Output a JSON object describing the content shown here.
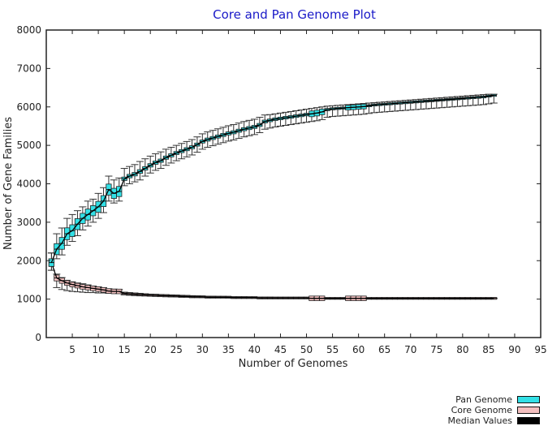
{
  "chart_data": {
    "type": "box",
    "title": "Core and Pan Genome Plot",
    "xlabel": "Number of Genomes",
    "ylabel": "Number of Gene Families",
    "xlim": [
      0,
      95
    ],
    "ylim": [
      0,
      8000
    ],
    "xticks": [
      5,
      10,
      15,
      20,
      25,
      30,
      35,
      40,
      45,
      50,
      55,
      60,
      65,
      70,
      75,
      80,
      85,
      90,
      95
    ],
    "yticks": [
      0,
      1000,
      2000,
      3000,
      4000,
      5000,
      6000,
      7000,
      8000
    ],
    "grid": false,
    "legend_position": "bottom-right",
    "x": [
      1,
      2,
      3,
      4,
      5,
      6,
      7,
      8,
      9,
      10,
      11,
      12,
      13,
      14,
      15,
      16,
      17,
      18,
      19,
      20,
      21,
      22,
      23,
      24,
      25,
      26,
      27,
      28,
      29,
      30,
      31,
      32,
      33,
      34,
      35,
      36,
      37,
      38,
      39,
      40,
      41,
      42,
      43,
      44,
      45,
      46,
      47,
      48,
      49,
      50,
      51,
      52,
      53,
      54,
      55,
      56,
      57,
      58,
      59,
      60,
      61,
      62,
      63,
      64,
      65,
      66,
      67,
      68,
      69,
      70,
      71,
      72,
      73,
      74,
      75,
      76,
      77,
      78,
      79,
      80,
      81,
      82,
      83,
      84,
      85,
      86
    ],
    "series": [
      {
        "name": "Pan Genome",
        "color": "#33e0e6",
        "median": [
          1950,
          2300,
          2450,
          2700,
          2780,
          2950,
          3100,
          3200,
          3300,
          3400,
          3550,
          3850,
          3750,
          3800,
          4130,
          4200,
          4250,
          4320,
          4400,
          4480,
          4550,
          4600,
          4680,
          4740,
          4800,
          4850,
          4900,
          4950,
          5020,
          5100,
          5150,
          5190,
          5230,
          5270,
          5310,
          5340,
          5380,
          5420,
          5450,
          5480,
          5530,
          5620,
          5650,
          5680,
          5700,
          5720,
          5740,
          5760,
          5780,
          5800,
          5820,
          5840,
          5870,
          5930,
          5950,
          5960,
          5970,
          5980,
          5990,
          6000,
          6010,
          6030,
          6050,
          6060,
          6070,
          6080,
          6090,
          6100,
          6110,
          6120,
          6130,
          6140,
          6150,
          6160,
          6170,
          6180,
          6190,
          6200,
          6210,
          6220,
          6230,
          6240,
          6250,
          6260,
          6280,
          6300
        ],
        "whisker_low": [
          1750,
          2050,
          2150,
          2400,
          2500,
          2650,
          2800,
          2900,
          3000,
          3100,
          3250,
          3550,
          3500,
          3550,
          3950,
          4000,
          4050,
          4100,
          4200,
          4280,
          4350,
          4400,
          4480,
          4540,
          4600,
          4650,
          4700,
          4750,
          4820,
          4900,
          4950,
          4990,
          5030,
          5070,
          5110,
          5140,
          5180,
          5220,
          5250,
          5280,
          5330,
          5420,
          5450,
          5480,
          5500,
          5520,
          5540,
          5560,
          5580,
          5600,
          5620,
          5640,
          5670,
          5730,
          5750,
          5760,
          5770,
          5780,
          5790,
          5800,
          5810,
          5830,
          5850,
          5860,
          5870,
          5880,
          5890,
          5900,
          5910,
          5920,
          5930,
          5940,
          5950,
          5960,
          5970,
          5980,
          5990,
          6000,
          6010,
          6020,
          6030,
          6040,
          6050,
          6060,
          6080,
          6100
        ],
        "whisker_high": [
          2200,
          2700,
          2850,
          3100,
          3200,
          3300,
          3400,
          3550,
          3600,
          3750,
          3900,
          4200,
          4100,
          4150,
          4400,
          4450,
          4500,
          4580,
          4650,
          4720,
          4780,
          4830,
          4900,
          4950,
          5000,
          5050,
          5100,
          5150,
          5220,
          5300,
          5350,
          5390,
          5430,
          5470,
          5510,
          5540,
          5580,
          5620,
          5650,
          5680,
          5730,
          5790,
          5800,
          5820,
          5840,
          5860,
          5880,
          5900,
          5920,
          5940,
          5960,
          5980,
          6000,
          6020,
          6030,
          6040,
          6050,
          6060,
          6070,
          6080,
          6090,
          6100,
          6110,
          6120,
          6130,
          6140,
          6150,
          6160,
          6170,
          6180,
          6190,
          6200,
          6210,
          6220,
          6230,
          6240,
          6250,
          6260,
          6270,
          6280,
          6290,
          6300,
          6310,
          6320,
          6330,
          6330
        ]
      },
      {
        "name": "Core Genome",
        "color": "#f4c0c0",
        "median": [
          1950,
          1550,
          1480,
          1420,
          1380,
          1350,
          1320,
          1300,
          1280,
          1260,
          1240,
          1210,
          1200,
          1200,
          1150,
          1140,
          1130,
          1120,
          1110,
          1100,
          1100,
          1090,
          1090,
          1080,
          1080,
          1070,
          1070,
          1060,
          1060,
          1060,
          1050,
          1050,
          1050,
          1050,
          1050,
          1040,
          1040,
          1040,
          1040,
          1040,
          1030,
          1030,
          1030,
          1030,
          1030,
          1030,
          1030,
          1030,
          1030,
          1030,
          1020,
          1020,
          1020,
          1020,
          1020,
          1020,
          1020,
          1020,
          1020,
          1020,
          1020,
          1020,
          1020,
          1020,
          1020,
          1020,
          1020,
          1020,
          1020,
          1020,
          1020,
          1020,
          1020,
          1020,
          1020,
          1020,
          1020,
          1020,
          1020,
          1020,
          1020,
          1020,
          1020,
          1020,
          1020,
          1020
        ],
        "whisker_low": [
          1750,
          1300,
          1250,
          1220,
          1200,
          1190,
          1180,
          1170,
          1170,
          1160,
          1160,
          1150,
          1150,
          1150,
          1110,
          1100,
          1090,
          1085,
          1080,
          1075,
          1070,
          1065,
          1060,
          1060,
          1055,
          1050,
          1050,
          1045,
          1045,
          1040,
          1040,
          1035,
          1035,
          1035,
          1030,
          1030,
          1030,
          1025,
          1025,
          1025,
          1025,
          1020,
          1020,
          1020,
          1020,
          1020,
          1020,
          1015,
          1015,
          1015,
          1015,
          1015,
          1015,
          1015,
          1015,
          1010,
          1010,
          1010,
          1010,
          1010,
          1010,
          1010,
          1010,
          1010,
          1010,
          1010,
          1010,
          1010,
          1010,
          1010,
          1010,
          1010,
          1010,
          1010,
          1010,
          1010,
          1010,
          1010,
          1010,
          1010,
          1010,
          1010,
          1010,
          1010,
          1010,
          1010
        ],
        "whisker_high": [
          2200,
          1650,
          1560,
          1490,
          1450,
          1420,
          1400,
          1370,
          1340,
          1320,
          1300,
          1270,
          1260,
          1250,
          1180,
          1170,
          1160,
          1150,
          1140,
          1130,
          1125,
          1120,
          1115,
          1110,
          1105,
          1100,
          1095,
          1090,
          1085,
          1080,
          1075,
          1075,
          1070,
          1070,
          1065,
          1060,
          1060,
          1060,
          1055,
          1055,
          1050,
          1050,
          1050,
          1045,
          1045,
          1045,
          1040,
          1040,
          1040,
          1040,
          1035,
          1035,
          1035,
          1035,
          1030,
          1030,
          1030,
          1030,
          1030,
          1030,
          1030,
          1030,
          1030,
          1030,
          1030,
          1030,
          1030,
          1030,
          1030,
          1030,
          1030,
          1030,
          1030,
          1030,
          1030,
          1030,
          1030,
          1030,
          1030,
          1030,
          1030,
          1030,
          1030,
          1030,
          1030,
          1030
        ]
      },
      {
        "name": "Median Values",
        "color": "#000000"
      }
    ]
  },
  "legend": {
    "pan_label": "Pan Genome",
    "core_label": "Core Genome",
    "median_label": "Median Values"
  }
}
